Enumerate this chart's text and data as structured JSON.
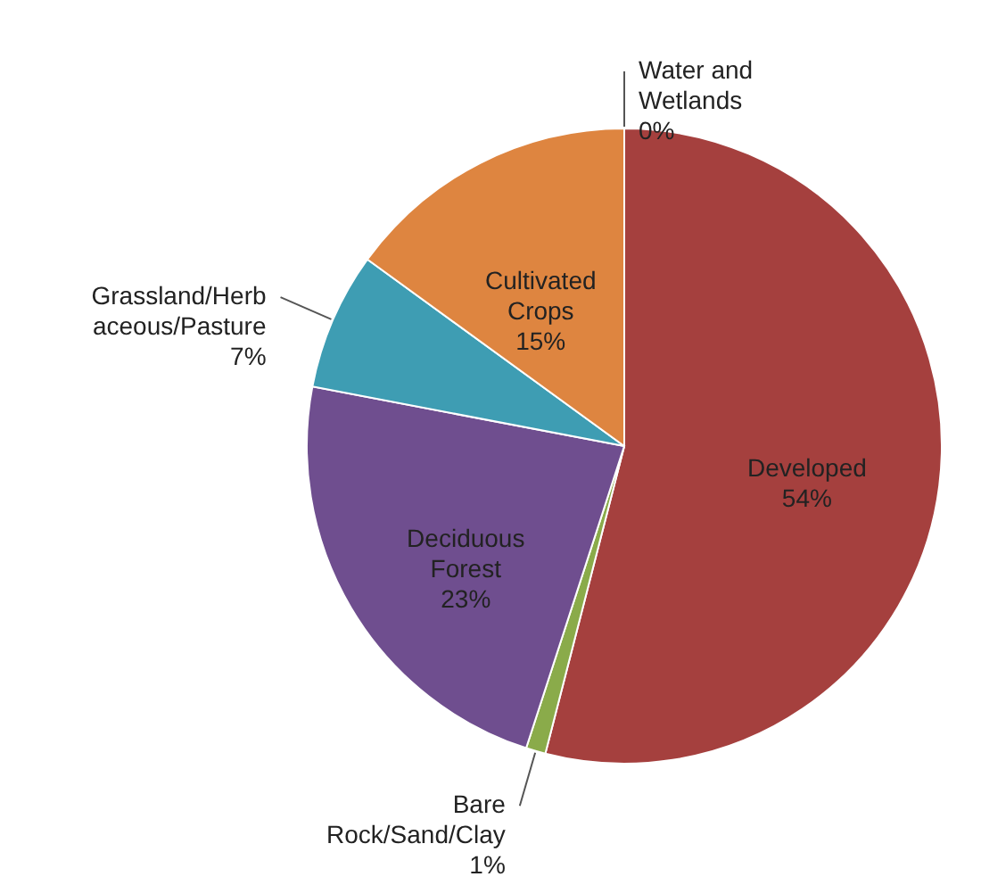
{
  "chart_data": {
    "type": "pie",
    "categories": [
      "Water and\nWetlands",
      "Developed",
      "Bare\nRock/Sand/Clay",
      "Deciduous\nForest",
      "Grassland/Herb\naceous/Pasture",
      "Cultivated\nCrops"
    ],
    "values": [
      0,
      54,
      1,
      23,
      7,
      15
    ],
    "colors": [
      "#4472c4",
      "#a5403e",
      "#8aab4a",
      "#6f4e8f",
      "#3e9db3",
      "#de8540"
    ],
    "value_labels": [
      "0%",
      "54%",
      "1%",
      "23%",
      "7%",
      "15%"
    ]
  }
}
